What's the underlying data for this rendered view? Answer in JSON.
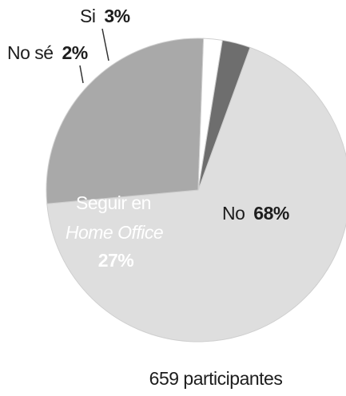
{
  "chart_data": {
    "type": "pie",
    "slices": [
      {
        "label": "No",
        "value": 68,
        "display": "68%",
        "color": "#dedede"
      },
      {
        "label": "Seguir en Home Office",
        "label_line1": "Seguir en",
        "label_line2": "Home Office",
        "value": 27,
        "display": "27%",
        "color": "#a9a9a9"
      },
      {
        "label": "No sé",
        "value": 2,
        "display": "2%",
        "color": "#ffffff"
      },
      {
        "label": "Si",
        "value": 3,
        "display": "3%",
        "color": "#6e6e6e"
      }
    ],
    "footnote": "659 participantes"
  }
}
